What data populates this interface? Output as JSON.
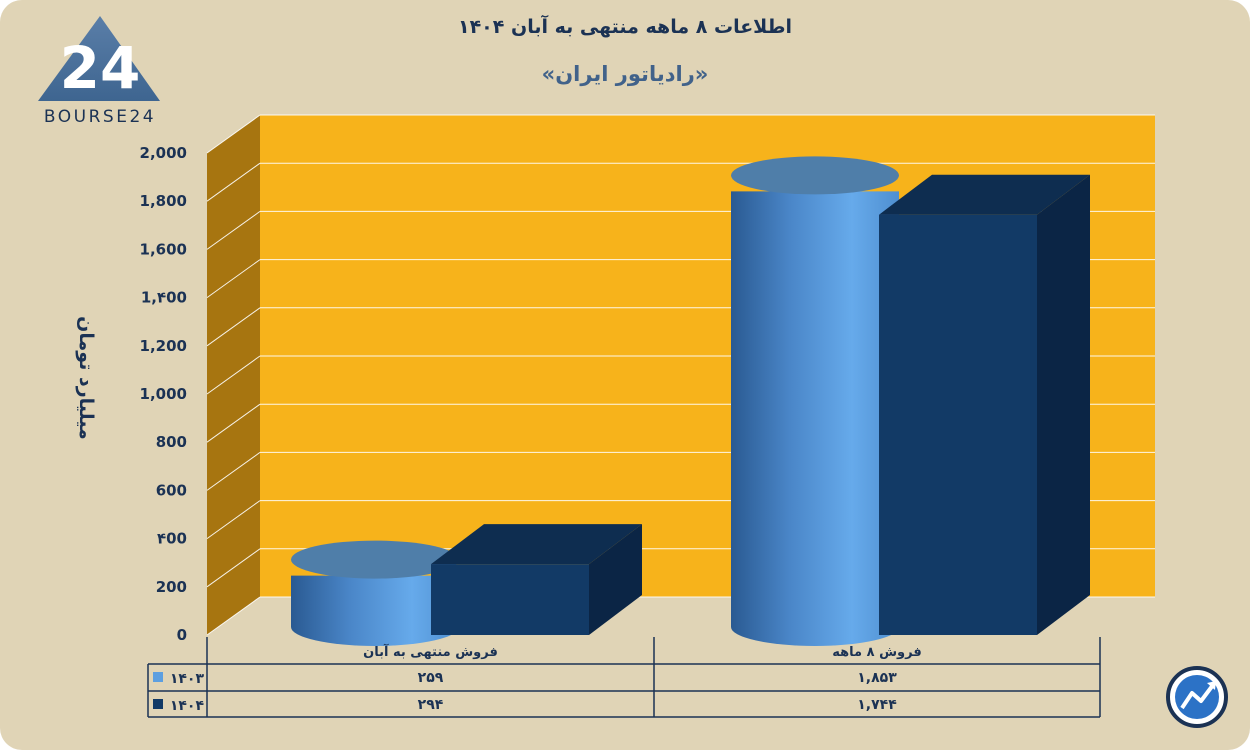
{
  "header": {
    "title": "اطلاعات ۸ ماهه منتهی به آبان ۱۴۰۴",
    "subtitle": "«رادیاتور ایران»"
  },
  "logo": {
    "mark": "24",
    "wordmark": "BOURSE24"
  },
  "colors": {
    "background": "#e0d4b6",
    "plot_back": "#f7b31b",
    "plot_side": "#a77510",
    "series_1403": "#5d9fe0",
    "series_1404": "#123a66",
    "text": "#1b3254"
  },
  "chart_data": {
    "type": "bar",
    "categories": [
      "فروش ۸ ماهه",
      "فروش منتهی به آبان"
    ],
    "series": [
      {
        "name": "۱۴۰۳",
        "values": [
          1853,
          259
        ],
        "value_labels": [
          "۱,۸۵۳",
          "۲۵۹"
        ],
        "shape": "cylinder"
      },
      {
        "name": "۱۴۰۴",
        "values": [
          1744,
          294
        ],
        "value_labels": [
          "۱,۷۴۴",
          "۲۹۴"
        ],
        "shape": "box"
      }
    ],
    "ylabel": "میلیارد تومان",
    "ylim": [
      0,
      2000
    ],
    "yticks": [
      0,
      200,
      400,
      600,
      800,
      1000,
      1200,
      1400,
      1600,
      1800,
      2000
    ],
    "ytick_labels": [
      "0",
      "200",
      "۴00",
      "600",
      "800",
      "1,000",
      "1,200",
      "1,۴00",
      "1,600",
      "1,800",
      "2,000"
    ],
    "grid": true,
    "legend": "data-table"
  }
}
